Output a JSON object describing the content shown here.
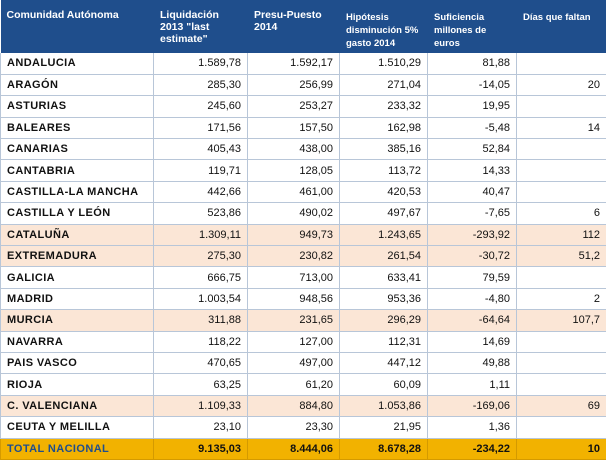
{
  "headers": {
    "region": "Comunidad Autónoma",
    "liquidacion": "Liquidación 2013 \"last estimate\"",
    "presupuesto": "Presu-Puesto 2014",
    "hipotesis": "Hipótesis disminución 5% gasto 2014",
    "suficiencia": "Suficiencia millones de euros",
    "dias": "Días que faltan"
  },
  "rows": [
    {
      "region": "ANDALUCIA",
      "liquidacion": "1.589,78",
      "presupuesto": "1.592,17",
      "hipotesis": "1.510,29",
      "suficiencia": "81,88",
      "dias": "",
      "highlight": false
    },
    {
      "region": "ARAGÓN",
      "liquidacion": "285,30",
      "presupuesto": "256,99",
      "hipotesis": "271,04",
      "suficiencia": "-14,05",
      "dias": "20",
      "highlight": false
    },
    {
      "region": "ASTURIAS",
      "liquidacion": "245,60",
      "presupuesto": "253,27",
      "hipotesis": "233,32",
      "suficiencia": "19,95",
      "dias": "",
      "highlight": false
    },
    {
      "region": "BALEARES",
      "liquidacion": "171,56",
      "presupuesto": "157,50",
      "hipotesis": "162,98",
      "suficiencia": "-5,48",
      "dias": "14",
      "highlight": false
    },
    {
      "region": "CANARIAS",
      "liquidacion": "405,43",
      "presupuesto": "438,00",
      "hipotesis": "385,16",
      "suficiencia": "52,84",
      "dias": "",
      "highlight": false
    },
    {
      "region": "CANTABRIA",
      "liquidacion": "119,71",
      "presupuesto": "128,05",
      "hipotesis": "113,72",
      "suficiencia": "14,33",
      "dias": "",
      "highlight": false
    },
    {
      "region": "CASTILLA-LA MANCHA",
      "liquidacion": "442,66",
      "presupuesto": "461,00",
      "hipotesis": "420,53",
      "suficiencia": "40,47",
      "dias": "",
      "highlight": false
    },
    {
      "region": "CASTILLA Y LEÓN",
      "liquidacion": "523,86",
      "presupuesto": "490,02",
      "hipotesis": "497,67",
      "suficiencia": "-7,65",
      "dias": "6",
      "highlight": false
    },
    {
      "region": "CATALUÑA",
      "liquidacion": "1.309,11",
      "presupuesto": "949,73",
      "hipotesis": "1.243,65",
      "suficiencia": "-293,92",
      "dias": "112",
      "highlight": true
    },
    {
      "region": "EXTREMADURA",
      "liquidacion": "275,30",
      "presupuesto": "230,82",
      "hipotesis": "261,54",
      "suficiencia": "-30,72",
      "dias": "51,2",
      "highlight": true
    },
    {
      "region": "GALICIA",
      "liquidacion": "666,75",
      "presupuesto": "713,00",
      "hipotesis": "633,41",
      "suficiencia": "79,59",
      "dias": "",
      "highlight": false
    },
    {
      "region": "MADRID",
      "liquidacion": "1.003,54",
      "presupuesto": "948,56",
      "hipotesis": "953,36",
      "suficiencia": "-4,80",
      "dias": "2",
      "highlight": false
    },
    {
      "region": "MURCIA",
      "liquidacion": "311,88",
      "presupuesto": "231,65",
      "hipotesis": "296,29",
      "suficiencia": "-64,64",
      "dias": "107,7",
      "highlight": true
    },
    {
      "region": "NAVARRA",
      "liquidacion": "118,22",
      "presupuesto": "127,00",
      "hipotesis": "112,31",
      "suficiencia": "14,69",
      "dias": "",
      "highlight": false
    },
    {
      "region": "PAIS VASCO",
      "liquidacion": "470,65",
      "presupuesto": "497,00",
      "hipotesis": "447,12",
      "suficiencia": "49,88",
      "dias": "",
      "highlight": false
    },
    {
      "region": "RIOJA",
      "liquidacion": "63,25",
      "presupuesto": "61,20",
      "hipotesis": "60,09",
      "suficiencia": "1,11",
      "dias": "",
      "highlight": false
    },
    {
      "region": "C. VALENCIANA",
      "liquidacion": "1.109,33",
      "presupuesto": "884,80",
      "hipotesis": "1.053,86",
      "suficiencia": "-169,06",
      "dias": "69",
      "highlight": true
    },
    {
      "region": "CEUTA Y MELILLA",
      "liquidacion": "23,10",
      "presupuesto": "23,30",
      "hipotesis": "21,95",
      "suficiencia": "1,36",
      "dias": "",
      "highlight": false
    }
  ],
  "total": {
    "region": "TOTAL NACIONAL",
    "liquidacion": "9.135,03",
    "presupuesto": "8.444,06",
    "hipotesis": "8.678,28",
    "suficiencia": "-234,22",
    "dias": "10"
  },
  "colors": {
    "header_bg": "#1f4e8c",
    "highlight_row": "#fbe6d6",
    "total_row": "#f2b200"
  }
}
